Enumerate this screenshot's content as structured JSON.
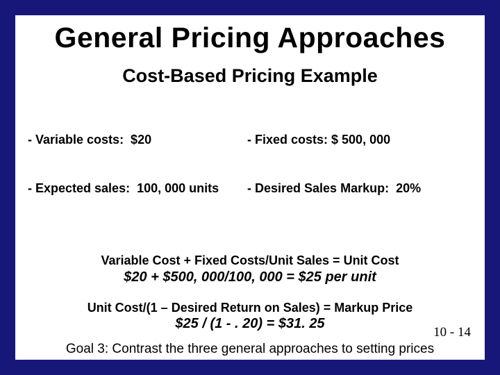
{
  "background_color": "#17177a",
  "slide_background": "#ffffff",
  "title": "General Pricing Approaches",
  "subtitle": "Cost-Based Pricing Example",
  "costs": {
    "left_line1": "- Variable costs:  $20",
    "left_line2": "- Expected sales:  100, 000 units",
    "right_line1": "- Fixed costs: $ 500, 000",
    "right_line2": "- Desired Sales Markup:  20%"
  },
  "formula1": {
    "label": "Variable Cost + Fixed Costs/Unit Sales = Unit Cost",
    "calc": "$20 + $500, 000/100, 000 = $25 per unit"
  },
  "formula2": {
    "label": "Unit Cost/(1 – Desired Return on Sales) = Markup Price",
    "calc": "$25 / (1 - . 20) = $31. 25"
  },
  "page_number": "10 - 14",
  "goal_text": "Goal 3: Contrast the three general approaches to setting prices",
  "fonts": {
    "main": "Verdana",
    "page_num": "Times New Roman",
    "goal": "Tahoma"
  }
}
